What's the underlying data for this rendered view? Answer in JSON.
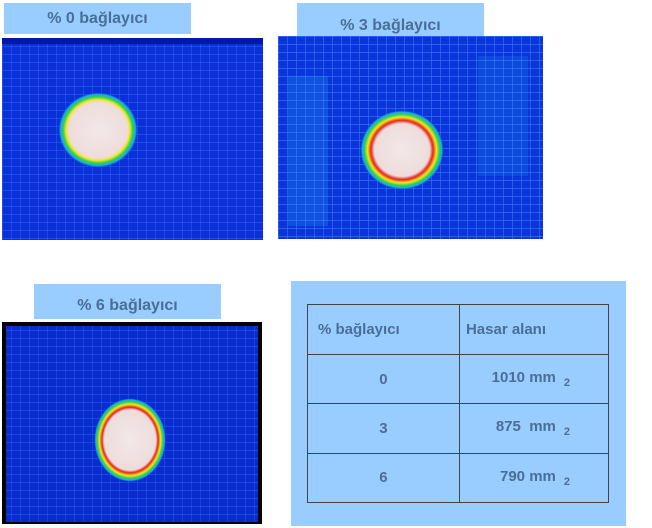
{
  "panels": [
    {
      "label": "% 0 bağlayıcı"
    },
    {
      "label": "% 3 bağlayıcı"
    },
    {
      "label": "% 6 bağlayıcı"
    }
  ],
  "table": {
    "headers": [
      "% bağlayıcı",
      "Hasar alanı"
    ],
    "rows": [
      {
        "binder": "0",
        "area": "1010 mm",
        "unit_exp": "2"
      },
      {
        "binder": "3",
        "area": "875  mm",
        "unit_exp": "2"
      },
      {
        "binder": "6",
        "area": "790 mm",
        "unit_exp": "2"
      }
    ]
  },
  "colors": {
    "label_bg": "#99ccff",
    "label_text": "#4a6f97",
    "scan_bg": "#0a2ed6",
    "damage_core": "#f2e6e6",
    "damage_ring_red": "#e8241a",
    "damage_ring_yellow": "#f5e61e",
    "damage_ring_green": "#2fd24f"
  }
}
